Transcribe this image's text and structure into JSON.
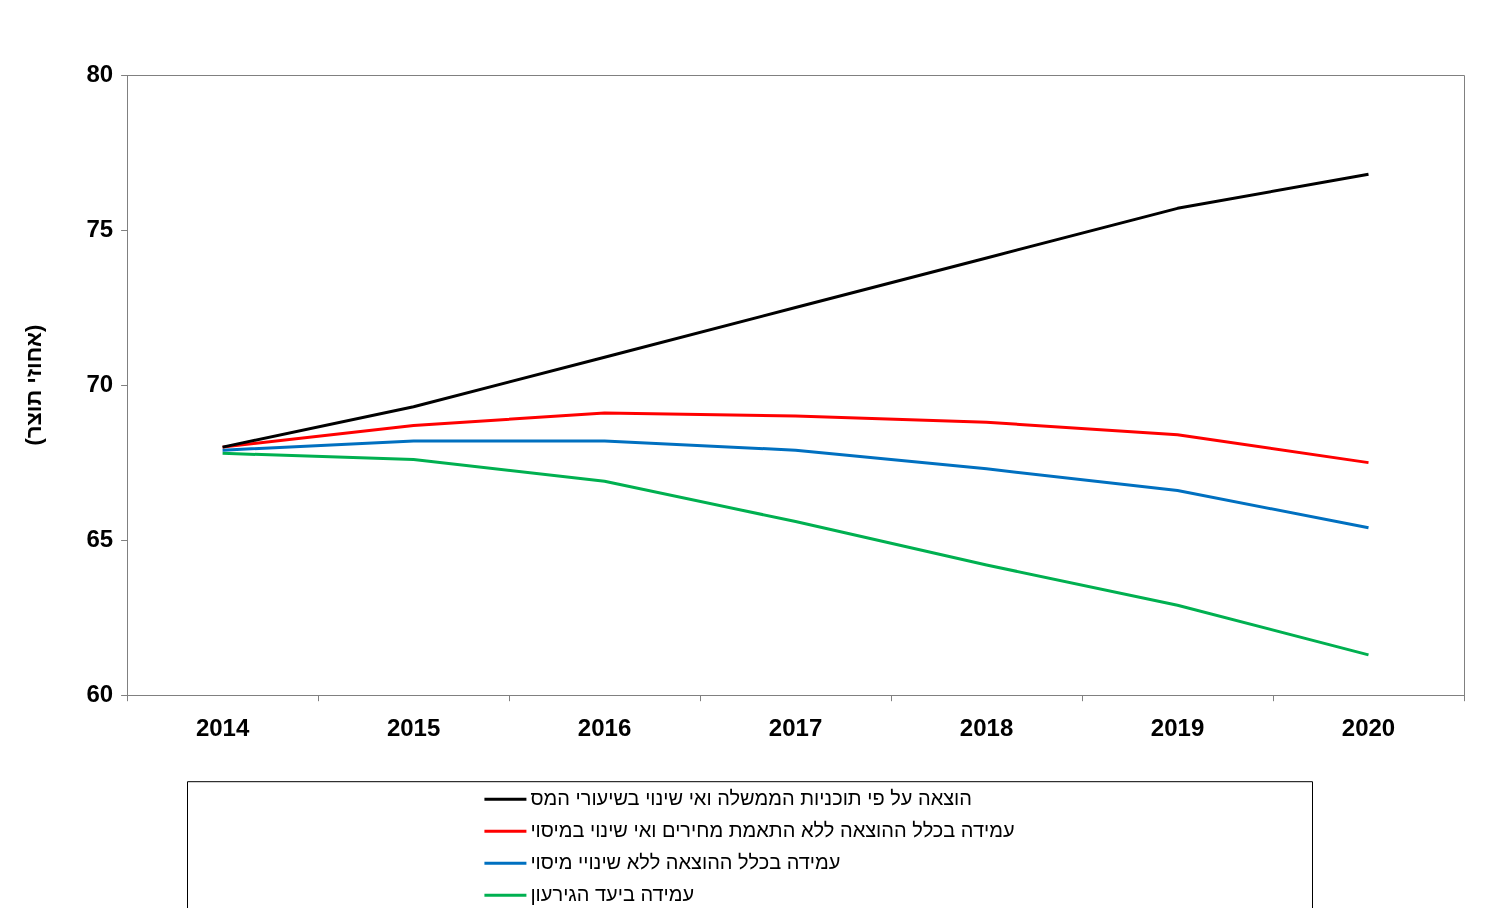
{
  "chart_data": {
    "type": "line",
    "ylabel": "(אחוזי תוצר)",
    "categories": [
      "2014",
      "2015",
      "2016",
      "2017",
      "2018",
      "2019",
      "2020"
    ],
    "ylim": [
      60,
      80
    ],
    "yticks": [
      60,
      65,
      70,
      75,
      80
    ],
    "grid": false,
    "legend": "bottom",
    "marker": "none",
    "line_style": "solid",
    "series": [
      {
        "name": "הוצאה על פי תוכניות הממשלה ואי שינוי בשיעורי המס",
        "color": "#000000",
        "values": [
          68.0,
          69.3,
          70.9,
          72.5,
          74.1,
          75.7,
          76.8
        ]
      },
      {
        "name": "עמידה בכלל ההוצאה ללא התאמת מחירים ואי שינוי במיסוי",
        "color": "#ff0000",
        "values": [
          68.0,
          68.7,
          69.1,
          69.0,
          68.8,
          68.4,
          67.5
        ]
      },
      {
        "name": "עמידה בכלל ההוצאה ללא שינויי מיסוי",
        "color": "#0070c0",
        "values": [
          67.9,
          68.2,
          68.2,
          67.9,
          67.3,
          66.6,
          65.4
        ]
      },
      {
        "name": "עמידה ביעד הגירעון",
        "color": "#00b050",
        "values": [
          67.8,
          67.6,
          66.9,
          65.6,
          64.2,
          62.9,
          61.3
        ]
      }
    ]
  }
}
